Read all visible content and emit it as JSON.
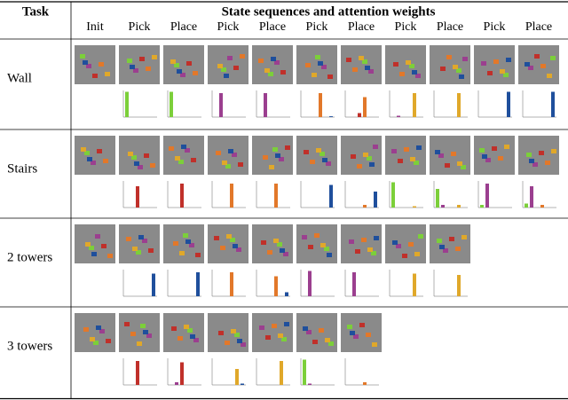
{
  "header": {
    "task": "Task",
    "title": "State sequences and attention weights",
    "steps": [
      "Init",
      "Pick",
      "Place",
      "Pick",
      "Place",
      "Pick",
      "Place",
      "Pick",
      "Place",
      "Pick",
      "Place"
    ]
  },
  "block_colors": [
    "#7ccf3a",
    "#9b3f8f",
    "#c0302a",
    "#e2782a",
    "#e0a82a",
    "#1f4f9c"
  ],
  "rows": [
    {
      "task": "Wall",
      "charts": [
        [
          0.95,
          0,
          0,
          0,
          0,
          0
        ],
        [
          0.95,
          0,
          0,
          0,
          0,
          0
        ],
        [
          0,
          0.9,
          0,
          0,
          0,
          0
        ],
        [
          0,
          0.9,
          0,
          0,
          0,
          0
        ],
        [
          0,
          0,
          0,
          0.9,
          0,
          0.03
        ],
        [
          0,
          0,
          0.15,
          0.75,
          0,
          0
        ],
        [
          0,
          0.05,
          0,
          0,
          0.9,
          0
        ],
        [
          0,
          0,
          0,
          0,
          0.9,
          0
        ],
        [
          0,
          0,
          0,
          0,
          0,
          0.95
        ],
        [
          0,
          0,
          0,
          0,
          0,
          0.95
        ]
      ]
    },
    {
      "task": "Stairs",
      "charts": [
        [
          0,
          0,
          0.8,
          0,
          0,
          0
        ],
        [
          0,
          0,
          0.9,
          0,
          0,
          0
        ],
        [
          0,
          0,
          0,
          0.9,
          0,
          0
        ],
        [
          0,
          0,
          0,
          0.9,
          0,
          0
        ],
        [
          0,
          0,
          0,
          0,
          0,
          0.85
        ],
        [
          0,
          0,
          0,
          0.1,
          0,
          0.6
        ],
        [
          0.95,
          0,
          0,
          0,
          0.05,
          0
        ],
        [
          0.7,
          0.1,
          0,
          0,
          0.1,
          0
        ],
        [
          0.1,
          0.9,
          0,
          0,
          0,
          0
        ],
        [
          0.15,
          0.8,
          0,
          0.1,
          0,
          0
        ]
      ]
    },
    {
      "task": "2 towers",
      "charts": [
        [
          0,
          0,
          0,
          0,
          0,
          0.85
        ],
        [
          0,
          0,
          0,
          0,
          0,
          0.9
        ],
        [
          0,
          0,
          0,
          0.9,
          0,
          0
        ],
        [
          0,
          0,
          0,
          0.75,
          0,
          0.15
        ],
        [
          0,
          0.95,
          0,
          0,
          0,
          0
        ],
        [
          0,
          0.9,
          0,
          0,
          0,
          0
        ],
        [
          0,
          0,
          0,
          0,
          0.85,
          0
        ],
        [
          0,
          0,
          0,
          0,
          0.8,
          0
        ]
      ]
    },
    {
      "task": "3 towers",
      "charts": [
        [
          0,
          0,
          0.9,
          0,
          0,
          0
        ],
        [
          0,
          0.1,
          0.85,
          0,
          0,
          0
        ],
        [
          0,
          0,
          0,
          0,
          0.6,
          0.05
        ],
        [
          0,
          0,
          0,
          0,
          0.9,
          0
        ],
        [
          0.95,
          0.05,
          0,
          0,
          0,
          0
        ],
        [
          0,
          0,
          0,
          0.1,
          0,
          0
        ]
      ]
    }
  ]
}
